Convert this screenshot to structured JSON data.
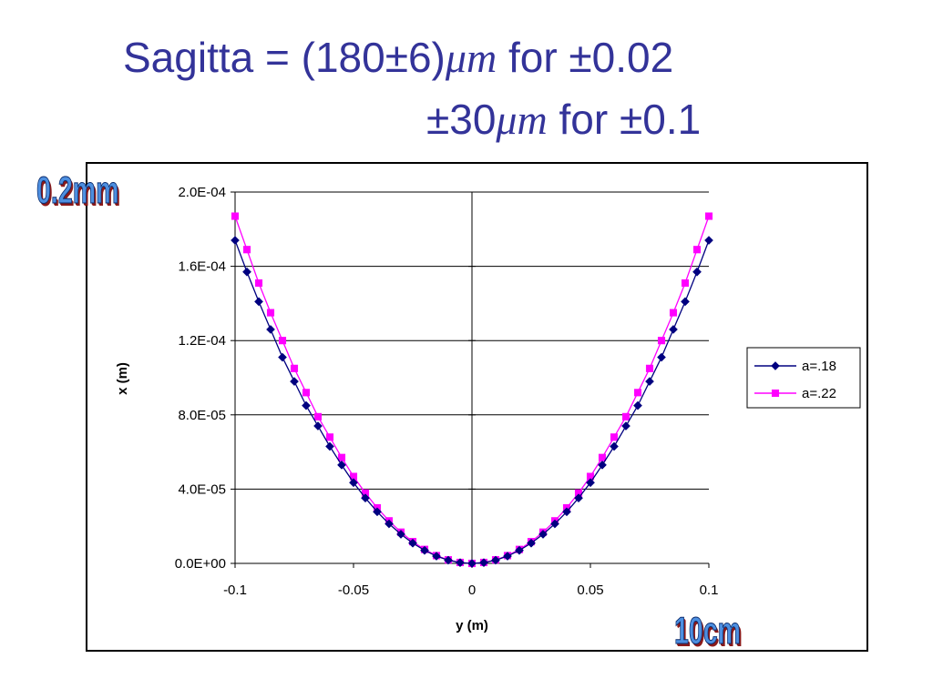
{
  "slide": {
    "title_line1_a": "Sagitta = (180",
    "title_line1_pm": "±",
    "title_line1_b": "6)",
    "title_line1_mu": "μm",
    "title_line1_c": " for ",
    "title_line1_pm2": "±",
    "title_line1_d": "0.02",
    "title_line2_pm": "±",
    "title_line2_a": "30",
    "title_line2_mu": "μm",
    "title_line2_b": " for ",
    "title_line2_pm2": "±",
    "title_line2_c": "0.1",
    "callout_y": "0.2mm",
    "callout_x": "10cm",
    "text_color": "#333399"
  },
  "chart_data": {
    "type": "line",
    "title": "",
    "xlabel": "y (m)",
    "ylabel": "x (m)",
    "xlim": [
      -0.1,
      0.1
    ],
    "ylim": [
      0,
      0.0002
    ],
    "x_ticks": [
      -0.1,
      -0.05,
      0,
      0.05,
      0.1
    ],
    "x_tick_labels": [
      "-0.1",
      "-0.05",
      "0",
      "0.05",
      "0.1"
    ],
    "y_ticks": [
      0,
      4e-05,
      8e-05,
      0.00012,
      0.00016,
      0.0002
    ],
    "y_tick_labels": [
      "0.0E+00",
      "4.0E-05",
      "8.0E-05",
      "1.2E-04",
      "1.6E-04",
      "2.0E-04"
    ],
    "grid": "horizontal",
    "legend_position": "right",
    "x": [
      -0.1,
      -0.095,
      -0.09,
      -0.085,
      -0.08,
      -0.075,
      -0.07,
      -0.065,
      -0.06,
      -0.055,
      -0.05,
      -0.045,
      -0.04,
      -0.035,
      -0.03,
      -0.025,
      -0.02,
      -0.015,
      -0.01,
      -0.005,
      0,
      0.005,
      0.01,
      0.015,
      0.02,
      0.025,
      0.03,
      0.035,
      0.04,
      0.045,
      0.05,
      0.055,
      0.06,
      0.065,
      0.07,
      0.075,
      0.08,
      0.085,
      0.09,
      0.095,
      0.1
    ],
    "series": [
      {
        "name": "a=.18",
        "color": "#000080",
        "marker": "diamond",
        "values": [
          0.000174,
          0.000157,
          0.000141,
          0.000126,
          0.000111,
          9.8e-05,
          8.5e-05,
          7.4e-05,
          6.3e-05,
          5.3e-05,
          4.35e-05,
          3.52e-05,
          2.78e-05,
          2.13e-05,
          1.57e-05,
          1.09e-05,
          7e-06,
          3.9e-06,
          1.7e-06,
          4e-07,
          0,
          4e-07,
          1.7e-06,
          3.9e-06,
          7e-06,
          1.09e-05,
          1.57e-05,
          2.13e-05,
          2.78e-05,
          3.52e-05,
          4.35e-05,
          5.3e-05,
          6.3e-05,
          7.4e-05,
          8.5e-05,
          9.8e-05,
          0.000111,
          0.000126,
          0.000141,
          0.000157,
          0.000174
        ]
      },
      {
        "name": "a=.22",
        "color": "#ff00ff",
        "marker": "square",
        "values": [
          0.000187,
          0.000169,
          0.000151,
          0.000135,
          0.00012,
          0.000105,
          9.2e-05,
          7.9e-05,
          6.8e-05,
          5.7e-05,
          4.68e-05,
          3.79e-05,
          2.99e-05,
          2.29e-05,
          1.68e-05,
          1.17e-05,
          7.5e-06,
          4.2e-06,
          1.9e-06,
          5e-07,
          0,
          5e-07,
          1.9e-06,
          4.2e-06,
          7.5e-06,
          1.17e-05,
          1.68e-05,
          2.29e-05,
          2.99e-05,
          3.79e-05,
          4.68e-05,
          5.7e-05,
          6.8e-05,
          7.9e-05,
          9.2e-05,
          0.000105,
          0.00012,
          0.000135,
          0.000151,
          0.000169,
          0.000187
        ]
      }
    ]
  }
}
